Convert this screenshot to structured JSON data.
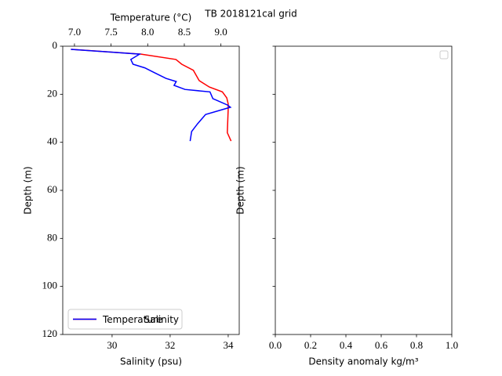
{
  "title": "TB 2018121cal grid",
  "chart_data": [
    {
      "type": "line",
      "xlabel": "Salinity (psu)",
      "x2label": "Temperature (°C)",
      "ylabel": "Depth (m)",
      "xlim": [
        28.3,
        34.38
      ],
      "xticks": [
        30,
        32,
        34
      ],
      "x2lim": [
        6.84,
        9.25
      ],
      "x2ticks": [
        {
          "value": 7,
          "label": "7.0"
        },
        7.5,
        {
          "value": 8,
          "label": "8.0"
        },
        8.5,
        {
          "value": 9,
          "label": "9.0"
        }
      ],
      "ylim": [
        120,
        0
      ],
      "yticks": [
        0,
        20,
        40,
        60,
        80,
        100,
        120
      ],
      "legend": "lower left",
      "series": [
        {
          "name": "Salinity",
          "color": "#ff0000",
          "x": [
            28.6,
            31.0,
            32.2,
            32.4,
            32.8,
            33.0,
            33.35,
            33.8,
            33.95,
            34.0,
            34.0,
            33.97,
            34.1
          ],
          "y": [
            1.3,
            3.3,
            5.5,
            7.5,
            10,
            14.3,
            17,
            19,
            21.5,
            24,
            26.4,
            36,
            39.5
          ]
        },
        {
          "name": "Temperature",
          "color": "#0000ff",
          "axis": "x2",
          "x": [
            6.95,
            7.89,
            7.77,
            7.8,
            7.96,
            8.09,
            8.25,
            8.39,
            8.36,
            8.51,
            8.85,
            8.89,
            9.09,
            9.13,
            8.79,
            8.68,
            8.6,
            8.58
          ],
          "y": [
            1.3,
            3.3,
            5.5,
            7.5,
            9,
            11,
            13.4,
            14.7,
            16.3,
            18,
            19,
            21.8,
            24.5,
            25.4,
            28.4,
            32.3,
            35.5,
            39.5
          ]
        }
      ]
    },
    {
      "type": "line",
      "xlabel": "Density anomaly kg/m³",
      "ylabel": "Depth (m)",
      "xlim": [
        0,
        1
      ],
      "xticks": [
        {
          "value": 0,
          "label": "0.0"
        },
        0.2,
        0.4,
        0.6,
        0.8,
        {
          "value": 1,
          "label": "1.0"
        }
      ],
      "ylim": [
        120,
        0
      ],
      "yticks": [
        0,
        20,
        40,
        60,
        80,
        100,
        120
      ],
      "ytick_labels": false,
      "legend": "upper right",
      "series": []
    }
  ]
}
